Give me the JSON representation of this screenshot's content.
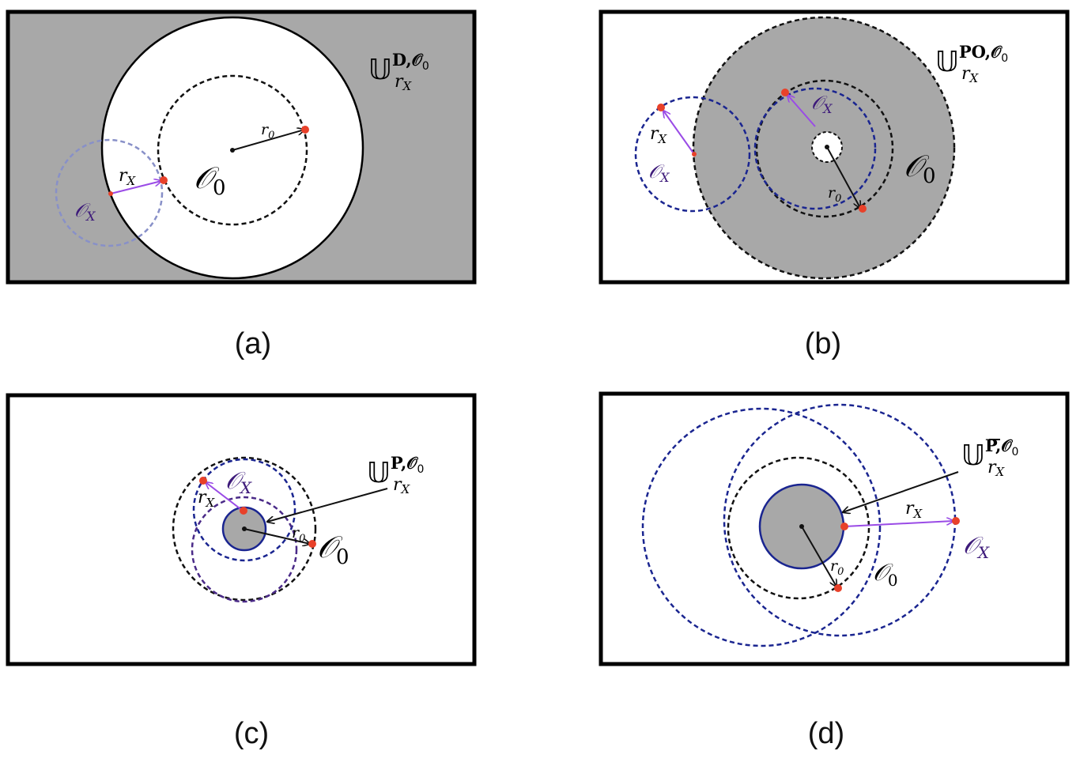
{
  "panels": [
    {
      "id": "a",
      "caption": "(a)",
      "region_base": "𝕌",
      "region_sup": "D,𝒪",
      "region_sup_sub": "0",
      "region_sub": "r",
      "region_sub_sub": "X",
      "o0_label": "𝒪",
      "o0_sub": "0",
      "r0_label": "r",
      "r0_sub": "0",
      "rx_label": "r",
      "rx_sub": "X",
      "ox_label": "𝒪",
      "ox_sub": "X"
    },
    {
      "id": "b",
      "caption": "(b)",
      "region_base": "𝕌",
      "region_sup": "PO,𝒪",
      "region_sup_sub": "0",
      "region_sub": "r",
      "region_sub_sub": "X",
      "o0_label": "𝒪",
      "o0_sub": "0",
      "r0_label": "r",
      "r0_sub": "0",
      "rx_label": "r",
      "rx_sub": "X",
      "ox_label": "𝒪",
      "ox_sub": "X"
    },
    {
      "id": "c",
      "caption": "(c)",
      "region_base": "𝕌",
      "region_sup": "P,𝒪",
      "region_sup_sub": "0",
      "region_sub": "r",
      "region_sub_sub": "X",
      "o0_label": "𝒪",
      "o0_sub": "0",
      "r0_label": "r",
      "r0_sub": "0",
      "rx_label": "r",
      "rx_sub": "X",
      "ox_label": "𝒪",
      "ox_sub": "X"
    },
    {
      "id": "d",
      "caption": "(d)",
      "region_base": "𝕌",
      "region_sup": "P,𝒪",
      "region_sup_sub": "0",
      "region_sub": "r",
      "region_sub_sub": "X",
      "o0_label": "𝒪",
      "o0_sub": "0",
      "r0_label": "r",
      "r0_sub": "0",
      "rx_label": "r",
      "rx_sub": "X",
      "ox_label": "𝒪",
      "ox_sub": "X"
    }
  ],
  "colors": {
    "fill_gray": "#a8a8a8",
    "frame": "#000000",
    "dashed_black": "#111111",
    "dashed_blue": "#1a2590",
    "dashed_purple": "#4a2a88",
    "light_blue": "#8890c8",
    "arrow_purple": "#9a4be6",
    "point_red": "#e8412a",
    "label_purple": "#3d1a7a"
  }
}
